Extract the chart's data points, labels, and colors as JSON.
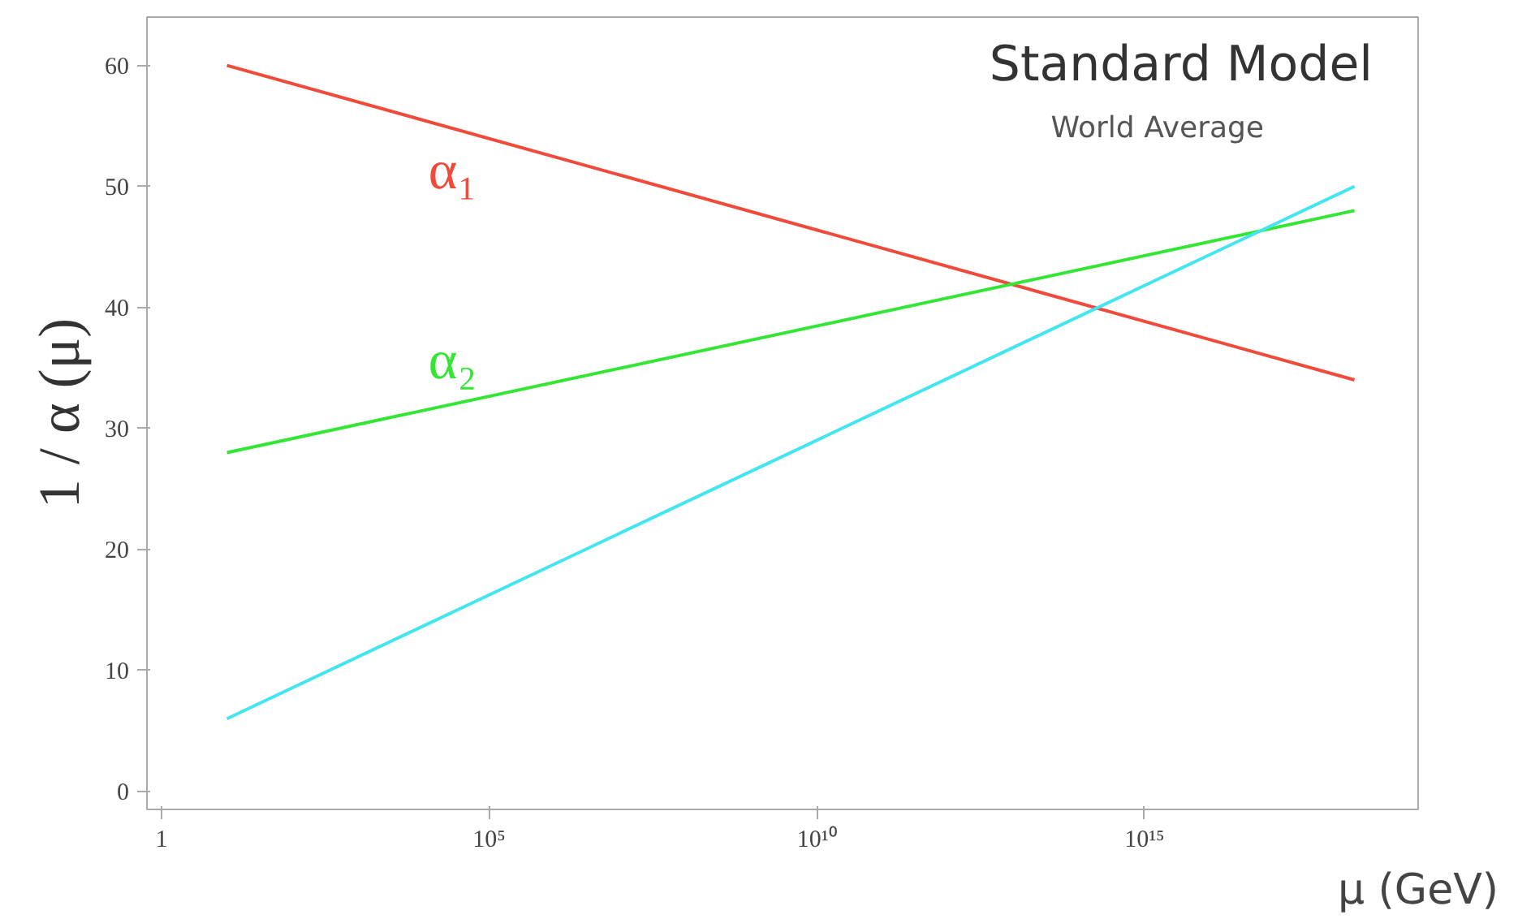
{
  "chart_data": {
    "type": "line",
    "title": "Standard Model",
    "subtitle": "World Average",
    "xlabel": "μ (GeV)",
    "ylabel": "1 / α (μ)",
    "log": "x",
    "x": [
      10,
      1.6e+18
    ],
    "series": [
      {
        "name": "α₁",
        "color": "#f04a3a",
        "values": [
          60,
          34
        ]
      },
      {
        "name": "α₂",
        "color": "#33e633",
        "values": [
          28,
          48
        ]
      },
      {
        "color": "#44e5f0",
        "values": [
          6,
          50
        ]
      }
    ],
    "xlim": [
      0.6,
      1.5e+19
    ],
    "xticks": [
      {
        "value": 1,
        "label": "1"
      },
      {
        "value": 100000,
        "label": "10⁵"
      },
      {
        "value": 10000000000.0,
        "label": "10¹⁰"
      },
      {
        "value": 1000000000000000.0,
        "label": "10¹⁵"
      }
    ],
    "ylim": [
      -1.5,
      64
    ],
    "yticks": [
      0,
      10,
      20,
      30,
      40,
      50,
      60
    ],
    "grid": false,
    "marker": "none",
    "line_style": "solid"
  }
}
